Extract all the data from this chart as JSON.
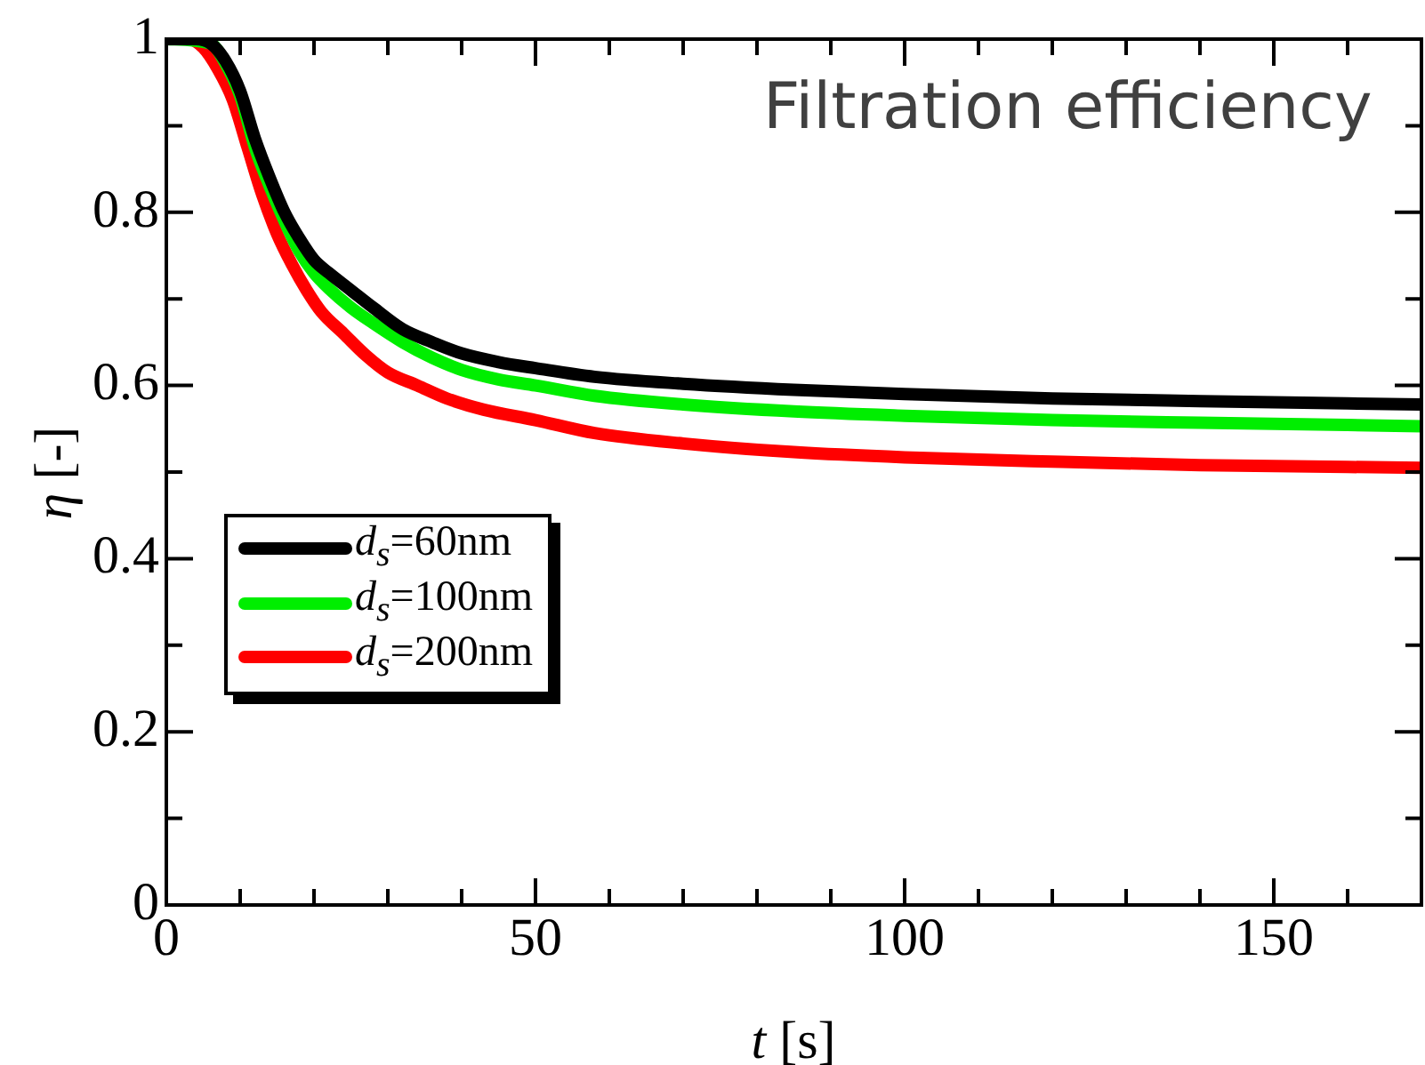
{
  "chart_data": {
    "type": "line",
    "xlabel": "t [s]",
    "ylabel": "η [-]",
    "annotations": [
      "Filtration efficiency"
    ],
    "xlim": [
      0,
      170
    ],
    "ylim": [
      0,
      1
    ],
    "xticks": [
      0,
      {
        "value": 10,
        "label": null
      },
      {
        "value": 20,
        "label": null
      },
      {
        "value": 30,
        "label": null
      },
      {
        "value": 40,
        "label": null
      },
      50,
      {
        "value": 60,
        "label": null
      },
      {
        "value": 70,
        "label": null
      },
      {
        "value": 80,
        "label": null
      },
      {
        "value": 90,
        "label": null
      },
      100,
      {
        "value": 110,
        "label": null
      },
      {
        "value": 120,
        "label": null
      },
      {
        "value": 130,
        "label": null
      },
      {
        "value": 140,
        "label": null
      },
      150,
      {
        "value": 160,
        "label": null
      }
    ],
    "yticks": [
      0,
      {
        "value": 0.1,
        "label": null
      },
      0.2,
      {
        "value": 0.3,
        "label": null
      },
      0.4,
      {
        "value": 0.5,
        "label": null
      },
      0.6,
      {
        "value": 0.7,
        "label": null
      },
      0.8,
      {
        "value": 0.9,
        "label": null
      },
      1
    ],
    "grid": false,
    "legend": "bottom left",
    "marker": "none",
    "line_style": "solid",
    "series": [
      {
        "name": "d$_{s}$=60nm",
        "color": "#000000",
        "x": [
          0,
          4,
          6,
          8,
          10,
          12,
          14,
          16,
          18,
          20,
          22,
          25,
          28,
          32,
          36,
          40,
          45,
          50,
          58,
          70,
          85,
          100,
          120,
          140,
          170
        ],
        "values": [
          1,
          1,
          0.995,
          0.975,
          0.94,
          0.885,
          0.84,
          0.8,
          0.77,
          0.745,
          0.73,
          0.71,
          0.69,
          0.665,
          0.65,
          0.637,
          0.627,
          0.62,
          0.61,
          0.602,
          0.595,
          0.59,
          0.585,
          0.582,
          0.578
        ]
      },
      {
        "name": "d$_{s}$=100nm",
        "color": "#00ee00",
        "x": [
          0,
          6,
          8,
          10,
          12,
          14,
          16,
          18,
          20,
          22,
          25,
          28,
          32,
          36,
          40,
          45,
          50,
          58,
          70,
          85,
          100,
          120,
          140,
          170
        ],
        "values": [
          1,
          0.995,
          0.972,
          0.935,
          0.875,
          0.83,
          0.79,
          0.755,
          0.73,
          0.712,
          0.69,
          0.672,
          0.65,
          0.632,
          0.618,
          0.607,
          0.6,
          0.588,
          0.578,
          0.57,
          0.565,
          0.56,
          0.557,
          0.553
        ]
      },
      {
        "name": "d$_{s}$=200nm",
        "color": "#ff0000",
        "x": [
          0,
          3,
          5,
          7,
          9,
          11,
          13,
          15,
          17,
          19,
          21,
          24,
          27,
          30,
          34,
          38,
          43,
          50,
          58,
          70,
          85,
          100,
          120,
          140,
          170
        ],
        "values": [
          1,
          1,
          0.99,
          0.965,
          0.93,
          0.875,
          0.82,
          0.775,
          0.74,
          0.71,
          0.685,
          0.66,
          0.635,
          0.615,
          0.6,
          0.585,
          0.572,
          0.56,
          0.545,
          0.533,
          0.523,
          0.517,
          0.512,
          0.508,
          0.505
        ]
      }
    ]
  }
}
